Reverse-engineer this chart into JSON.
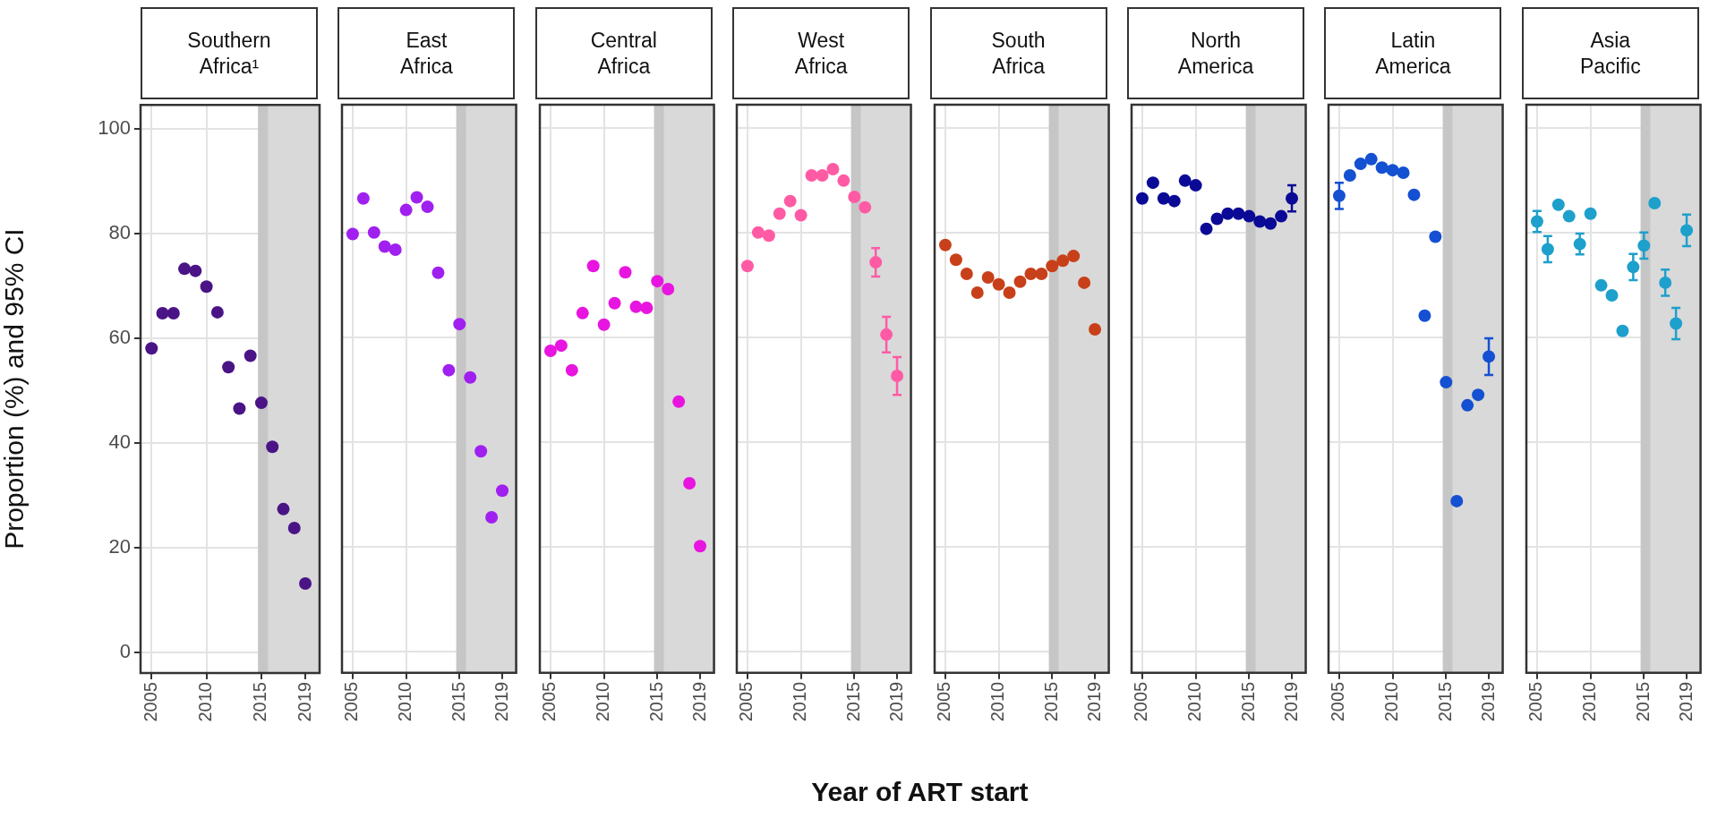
{
  "chart_data": [
    {
      "type": "scatter",
      "title": "Southern Africa¹",
      "ylabel": "Proportion (%) and 95% CI",
      "x": [
        2005,
        2006,
        2007,
        2008,
        2009,
        2010,
        2011,
        2012,
        2013,
        2014,
        2015,
        2016,
        2017,
        2018,
        2019
      ],
      "series": [
        {
          "color": "#4a1486",
          "values": [
            58,
            64.7,
            64.7,
            73.2,
            72.8,
            69.8,
            64.9,
            54.4,
            46.5,
            56.6,
            47.6,
            39.2,
            27.3,
            23.7,
            13.1
          ]
        }
      ],
      "xlim": [
        2004,
        2020.3
      ],
      "ylim": [
        -4,
        104.5
      ],
      "xticks": [
        2005,
        2010,
        2015,
        2019
      ],
      "yticks": [
        0,
        20,
        40,
        60,
        80,
        100
      ],
      "grid": true,
      "marker": "circle",
      "bands": [
        {
          "axis": "x",
          "from": 2014.7,
          "to": 2020.3,
          "color": "#d9d9d9"
        },
        {
          "axis": "x",
          "from": 2014.7,
          "to": 2015.6,
          "color": "#c6c6c6"
        }
      ]
    },
    {
      "type": "scatter",
      "title": "East Africa",
      "x": [
        2005,
        2006,
        2007,
        2008,
        2009,
        2010,
        2011,
        2012,
        2013,
        2014,
        2015,
        2016,
        2017,
        2018,
        2019
      ],
      "series": [
        {
          "color": "#a020f0",
          "values": [
            79.8,
            86.6,
            80.1,
            77.4,
            76.8,
            84.4,
            86.8,
            85,
            72.4,
            53.8,
            62.6,
            52.4,
            38.3,
            25.7,
            30.8
          ]
        }
      ],
      "xlim": [
        2004,
        2020.3
      ],
      "ylim": [
        -4,
        104.5
      ],
      "xticks": [
        2005,
        2010,
        2015,
        2019
      ],
      "yticks": [
        0,
        20,
        40,
        60,
        80,
        100
      ],
      "grid": true,
      "marker": "circle",
      "tick_labels": "x",
      "bands": [
        {
          "axis": "x",
          "from": 2014.7,
          "to": 2020.3,
          "color": "#d9d9d9"
        },
        {
          "axis": "x",
          "from": 2014.7,
          "to": 2015.6,
          "color": "#c6c6c6"
        }
      ]
    },
    {
      "type": "scatter",
      "title": "Central Africa",
      "x": [
        2005,
        2006,
        2007,
        2008,
        2009,
        2010,
        2011,
        2012,
        2013,
        2014,
        2015,
        2016,
        2017,
        2018,
        2019
      ],
      "series": [
        {
          "color": "#e815e0",
          "values": [
            57.5,
            58.5,
            53.8,
            64.7,
            73.7,
            62.5,
            66.6,
            72.5,
            65.9,
            65.7,
            70.8,
            69.3,
            47.8,
            32.2,
            20.2
          ]
        }
      ],
      "xlim": [
        2004,
        2020.3
      ],
      "ylim": [
        -4,
        104.5
      ],
      "xticks": [
        2005,
        2010,
        2015,
        2019
      ],
      "yticks": [
        0,
        20,
        40,
        60,
        80,
        100
      ],
      "grid": true,
      "marker": "circle",
      "tick_labels": "x",
      "bands": [
        {
          "axis": "x",
          "from": 2014.7,
          "to": 2020.3,
          "color": "#d9d9d9"
        },
        {
          "axis": "x",
          "from": 2014.7,
          "to": 2015.6,
          "color": "#c6c6c6"
        }
      ]
    },
    {
      "type": "scatter",
      "title": "West Africa",
      "x": [
        2005,
        2006,
        2007,
        2008,
        2009,
        2010,
        2011,
        2012,
        2013,
        2014,
        2015,
        2016,
        2017,
        2018,
        2019
      ],
      "series": [
        {
          "color": "#ff5ba5",
          "values": [
            73.7,
            80.1,
            79.5,
            83.7,
            86.1,
            83.4,
            91,
            91,
            92.2,
            90,
            86.9,
            84.9,
            74.4,
            60.6,
            52.7
          ],
          "errors": [
            null,
            null,
            null,
            null,
            null,
            null,
            null,
            null,
            null,
            null,
            null,
            null,
            2.7,
            3.4,
            3.6
          ]
        }
      ],
      "xlim": [
        2004,
        2020.3
      ],
      "ylim": [
        -4,
        104.5
      ],
      "xticks": [
        2005,
        2010,
        2015,
        2019
      ],
      "yticks": [
        0,
        20,
        40,
        60,
        80,
        100
      ],
      "grid": true,
      "marker": "circle",
      "tick_labels": "x",
      "bands": [
        {
          "axis": "x",
          "from": 2014.7,
          "to": 2020.3,
          "color": "#d9d9d9"
        },
        {
          "axis": "x",
          "from": 2014.7,
          "to": 2015.6,
          "color": "#c6c6c6"
        }
      ]
    },
    {
      "type": "scatter",
      "title": "South Africa",
      "xlabel": "Year of ART start",
      "x": [
        2005,
        2006,
        2007,
        2008,
        2009,
        2010,
        2011,
        2012,
        2013,
        2014,
        2015,
        2016,
        2017,
        2018,
        2019
      ],
      "series": [
        {
          "color": "#c8401a",
          "values": [
            77.7,
            74.9,
            72.2,
            68.6,
            71.5,
            70.2,
            68.6,
            70.7,
            72.2,
            72.2,
            73.7,
            74.7,
            75.6,
            70.5,
            61.6
          ]
        }
      ],
      "xlim": [
        2004,
        2020.3
      ],
      "ylim": [
        -4,
        104.5
      ],
      "xticks": [
        2005,
        2010,
        2015,
        2019
      ],
      "yticks": [
        0,
        20,
        40,
        60,
        80,
        100
      ],
      "grid": true,
      "marker": "circle",
      "tick_labels": "x",
      "bands": [
        {
          "axis": "x",
          "from": 2014.7,
          "to": 2020.3,
          "color": "#d9d9d9"
        },
        {
          "axis": "x",
          "from": 2014.7,
          "to": 2015.6,
          "color": "#c6c6c6"
        }
      ]
    },
    {
      "type": "scatter",
      "title": "North America",
      "x": [
        2005,
        2006,
        2007,
        2008,
        2009,
        2010,
        2011,
        2012,
        2013,
        2014,
        2015,
        2016,
        2017,
        2018,
        2019
      ],
      "series": [
        {
          "color": "#0a0a96",
          "values": [
            86.6,
            89.6,
            86.6,
            86.1,
            90,
            89.1,
            80.8,
            82.7,
            83.7,
            83.7,
            83.2,
            82.2,
            81.8,
            83.2,
            86.6
          ],
          "errors": [
            null,
            null,
            null,
            null,
            null,
            null,
            null,
            null,
            null,
            null,
            null,
            null,
            null,
            null,
            2.5
          ]
        }
      ],
      "xlim": [
        2004,
        2020.3
      ],
      "ylim": [
        -4,
        104.5
      ],
      "xticks": [
        2005,
        2010,
        2015,
        2019
      ],
      "yticks": [
        0,
        20,
        40,
        60,
        80,
        100
      ],
      "grid": true,
      "marker": "circle",
      "tick_labels": "x",
      "bands": [
        {
          "axis": "x",
          "from": 2014.7,
          "to": 2020.3,
          "color": "#d9d9d9"
        },
        {
          "axis": "x",
          "from": 2014.7,
          "to": 2015.6,
          "color": "#c6c6c6"
        }
      ]
    },
    {
      "type": "scatter",
      "title": "Latin America",
      "x": [
        2005,
        2006,
        2007,
        2008,
        2009,
        2010,
        2011,
        2012,
        2013,
        2014,
        2015,
        2016,
        2017,
        2018,
        2019
      ],
      "series": [
        {
          "color": "#1450d2",
          "values": [
            87.1,
            91,
            93.2,
            94.1,
            92.5,
            92,
            91.5,
            87.3,
            64.2,
            79.3,
            51.5,
            28.8,
            47.1,
            49.1,
            56.4
          ],
          "errors": [
            2.5,
            null,
            null,
            null,
            null,
            null,
            null,
            null,
            null,
            null,
            null,
            null,
            null,
            null,
            3.5
          ]
        }
      ],
      "xlim": [
        2004,
        2020.3
      ],
      "ylim": [
        -4,
        104.5
      ],
      "xticks": [
        2005,
        2010,
        2015,
        2019
      ],
      "yticks": [
        0,
        20,
        40,
        60,
        80,
        100
      ],
      "grid": true,
      "marker": "circle",
      "tick_labels": "x",
      "bands": [
        {
          "axis": "x",
          "from": 2014.7,
          "to": 2020.3,
          "color": "#d9d9d9"
        },
        {
          "axis": "x",
          "from": 2014.7,
          "to": 2015.6,
          "color": "#c6c6c6"
        }
      ]
    },
    {
      "type": "scatter",
      "title": "Asia Pacific",
      "x": [
        2005,
        2006,
        2007,
        2008,
        2009,
        2010,
        2011,
        2012,
        2013,
        2014,
        2015,
        2016,
        2017,
        2018,
        2019
      ],
      "series": [
        {
          "color": "#1ea0cc",
          "values": [
            82.2,
            76.9,
            85.4,
            83.2,
            77.9,
            83.7,
            70,
            68.1,
            61.3,
            73.5,
            77.6,
            85.7,
            70.5,
            62.7,
            80.5
          ],
          "errors": [
            2,
            2.5,
            null,
            null,
            2,
            null,
            null,
            null,
            null,
            2.5,
            2.5,
            null,
            2.5,
            3,
            3
          ]
        }
      ],
      "xlim": [
        2004,
        2020.3
      ],
      "ylim": [
        -4,
        104.5
      ],
      "xticks": [
        2005,
        2010,
        2015,
        2019
      ],
      "yticks": [
        0,
        20,
        40,
        60,
        80,
        100
      ],
      "grid": true,
      "marker": "circle",
      "tick_labels": "x",
      "bands": [
        {
          "axis": "x",
          "from": 2014.7,
          "to": 2020.3,
          "color": "#d9d9d9"
        },
        {
          "axis": "x",
          "from": 2014.7,
          "to": 2015.6,
          "color": "#c6c6c6"
        }
      ]
    }
  ]
}
